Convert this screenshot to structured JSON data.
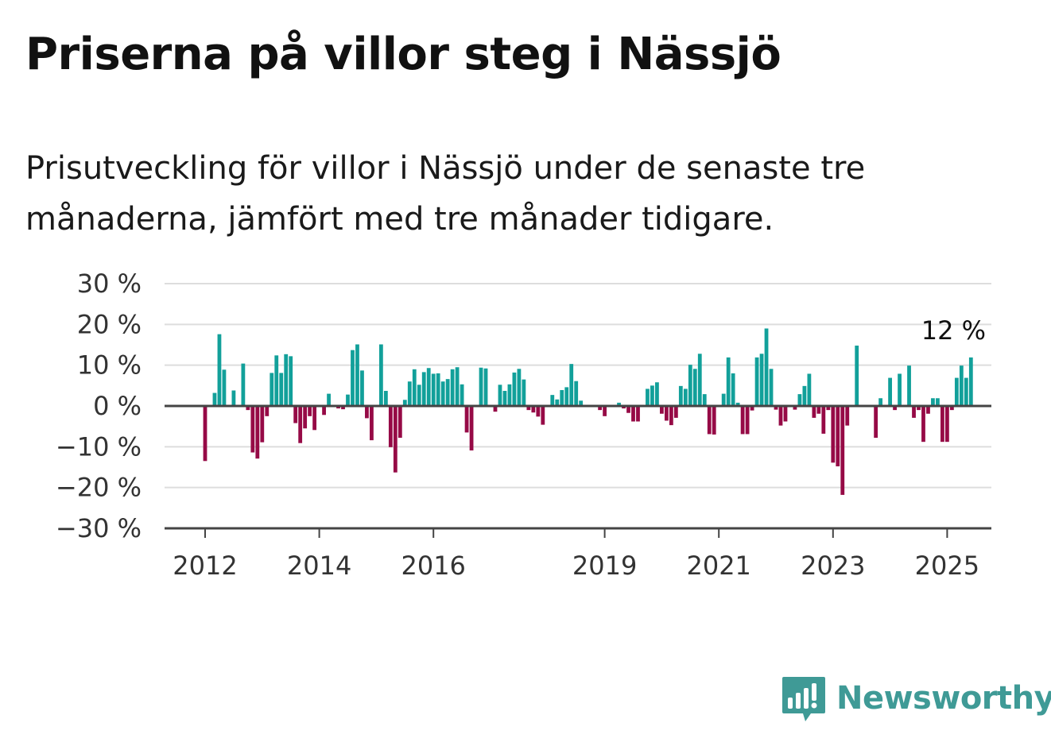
{
  "header": {
    "title": "Priserna på villor steg i Nässjö",
    "subtitle": "Prisutveckling för villor i Nässjö under de senaste tre månaderna, jämfört med tre månader tidigare."
  },
  "brand": {
    "name": "Newsworthy",
    "icon": "bar-chart-speech-icon",
    "color": "#3f9a96"
  },
  "colors": {
    "positive": "#12a09a",
    "negative": "#960a46",
    "grid": "#dddddd",
    "axis": "#444444"
  },
  "chart_data": {
    "type": "bar",
    "title": "Priserna på villor steg i Nässjö",
    "xlabel": "",
    "ylabel": "",
    "ylim": [
      -30,
      30
    ],
    "yticks": [
      30,
      20,
      10,
      0,
      -10,
      -20,
      -30
    ],
    "ytick_labels": [
      "30 %",
      "20 %",
      "10 %",
      "0 %",
      "−10 %",
      "−20 %",
      "−30 %"
    ],
    "xticks": [
      2012,
      2014,
      2016,
      2019,
      2021,
      2023,
      2025
    ],
    "xtick_labels": [
      "2012",
      "2014",
      "2016",
      "2019",
      "2021",
      "2023",
      "2025"
    ],
    "grid": true,
    "end_label": "12 %",
    "start": "2012-01",
    "frequency": "monthly",
    "values": [
      -13.5,
      0,
      3.2,
      17.6,
      8.9,
      0,
      3.8,
      0,
      10.4,
      -1,
      -11.4,
      -12.9,
      -8.9,
      -2.5,
      8.1,
      12.4,
      8.1,
      12.7,
      12.2,
      -4.2,
      -9.1,
      -5.5,
      -2.5,
      -5.9,
      0,
      -2.2,
      3,
      0,
      -0.6,
      -0.8,
      2.8,
      13.7,
      15.1,
      8.7,
      -3,
      -8.4,
      0,
      15.1,
      3.7,
      -10.1,
      -16.3,
      -7.8,
      1.5,
      6,
      9,
      5.2,
      8.3,
      9.3,
      7.9,
      8,
      6,
      6.6,
      9,
      9.5,
      5.3,
      -6.5,
      -10.9,
      0,
      9.4,
      9.2,
      0,
      -1.4,
      5.2,
      3.7,
      5.3,
      8.2,
      9.1,
      6.5,
      -1,
      -1.6,
      -2.6,
      -4.6,
      0,
      2.7,
      1.6,
      3.9,
      4.6,
      10.3,
      6.1,
      1.3,
      0,
      0,
      0,
      -1,
      -2.5,
      0,
      0,
      0.8,
      -0.6,
      -1.7,
      -3.8,
      -3.8,
      0,
      4.2,
      5,
      5.8,
      -1.9,
      -3.6,
      -4.7,
      -2.9,
      4.9,
      4.2,
      10.1,
      9.1,
      12.8,
      2.9,
      -6.9,
      -7,
      0,
      3,
      11.9,
      8,
      0.8,
      -6.9,
      -6.9,
      -1.1,
      11.9,
      12.8,
      19,
      9.1,
      -0.9,
      -4.8,
      -3.8,
      0,
      -0.9,
      2.9,
      4.9,
      7.9,
      -2.9,
      -1.9,
      -6.8,
      -1,
      -13.9,
      -14.8,
      -21.8,
      -4.8,
      0,
      14.8,
      0,
      0,
      0,
      -7.8,
      1.9,
      0,
      6.9,
      -1,
      7.9,
      0,
      9.9,
      -2.9,
      -1,
      -8.8,
      -1.9,
      1.9,
      1.9,
      -8.8,
      -8.8,
      -1,
      6.9,
      9.9,
      6.9,
      11.9
    ]
  }
}
